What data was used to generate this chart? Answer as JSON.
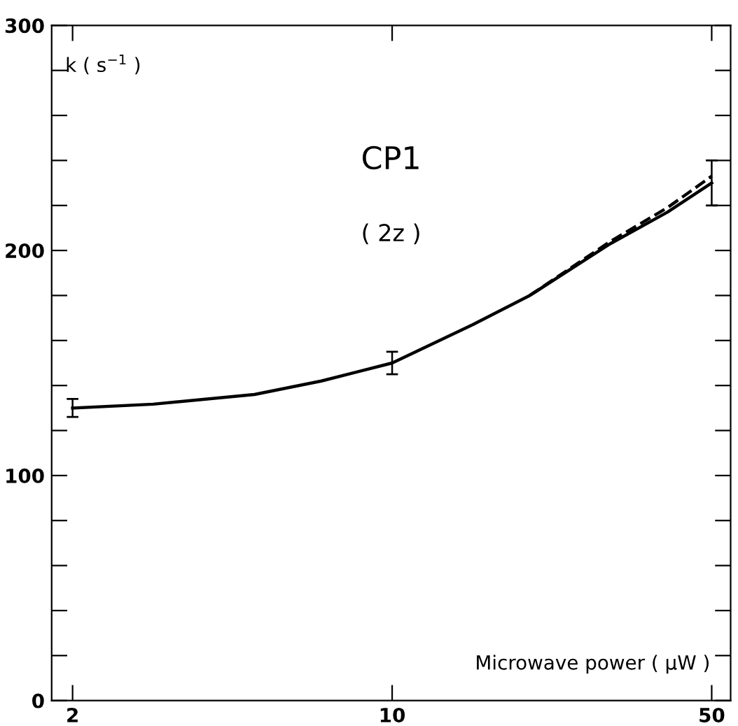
{
  "chart_data": {
    "type": "line",
    "title": "CP1",
    "subtitle": "( 2z )",
    "xlabel": "Microwave power ( μW )",
    "ylabel": "k ( s$^{−1}$ )",
    "log": "x",
    "xlim": [
      1.8,
      55
    ],
    "xticks": [
      2,
      10,
      50
    ],
    "ylim": [
      0,
      300
    ],
    "yticks": [
      0,
      {
        "value": 20,
        "label": null
      },
      {
        "value": 40,
        "label": null
      },
      {
        "value": 60,
        "label": null
      },
      {
        "value": 80,
        "label": null
      },
      100,
      {
        "value": 120,
        "label": null
      },
      {
        "value": 140,
        "label": null
      },
      {
        "value": 160,
        "label": null
      },
      {
        "value": 180,
        "label": null
      },
      200,
      {
        "value": 220,
        "label": null
      },
      {
        "value": 240,
        "label": null
      },
      {
        "value": 260,
        "label": null
      },
      {
        "value": 280,
        "label": null
      },
      300
    ],
    "grid": false,
    "legend": false,
    "marker": "none",
    "series": [
      {
        "color": "#000000",
        "line_style": "solid",
        "x": [
          2,
          3,
          5,
          7,
          10,
          15,
          20,
          30,
          40,
          50
        ],
        "values": [
          130,
          131.7,
          136,
          142,
          150,
          167,
          180,
          203,
          217,
          230
        ],
        "errors": [
          4,
          null,
          null,
          null,
          5,
          null,
          null,
          null,
          null,
          10
        ]
      },
      {
        "color": "#000000",
        "line_style": "dashed",
        "x": [
          20,
          30,
          40,
          50
        ],
        "values": [
          180,
          204,
          219,
          233
        ]
      }
    ]
  }
}
